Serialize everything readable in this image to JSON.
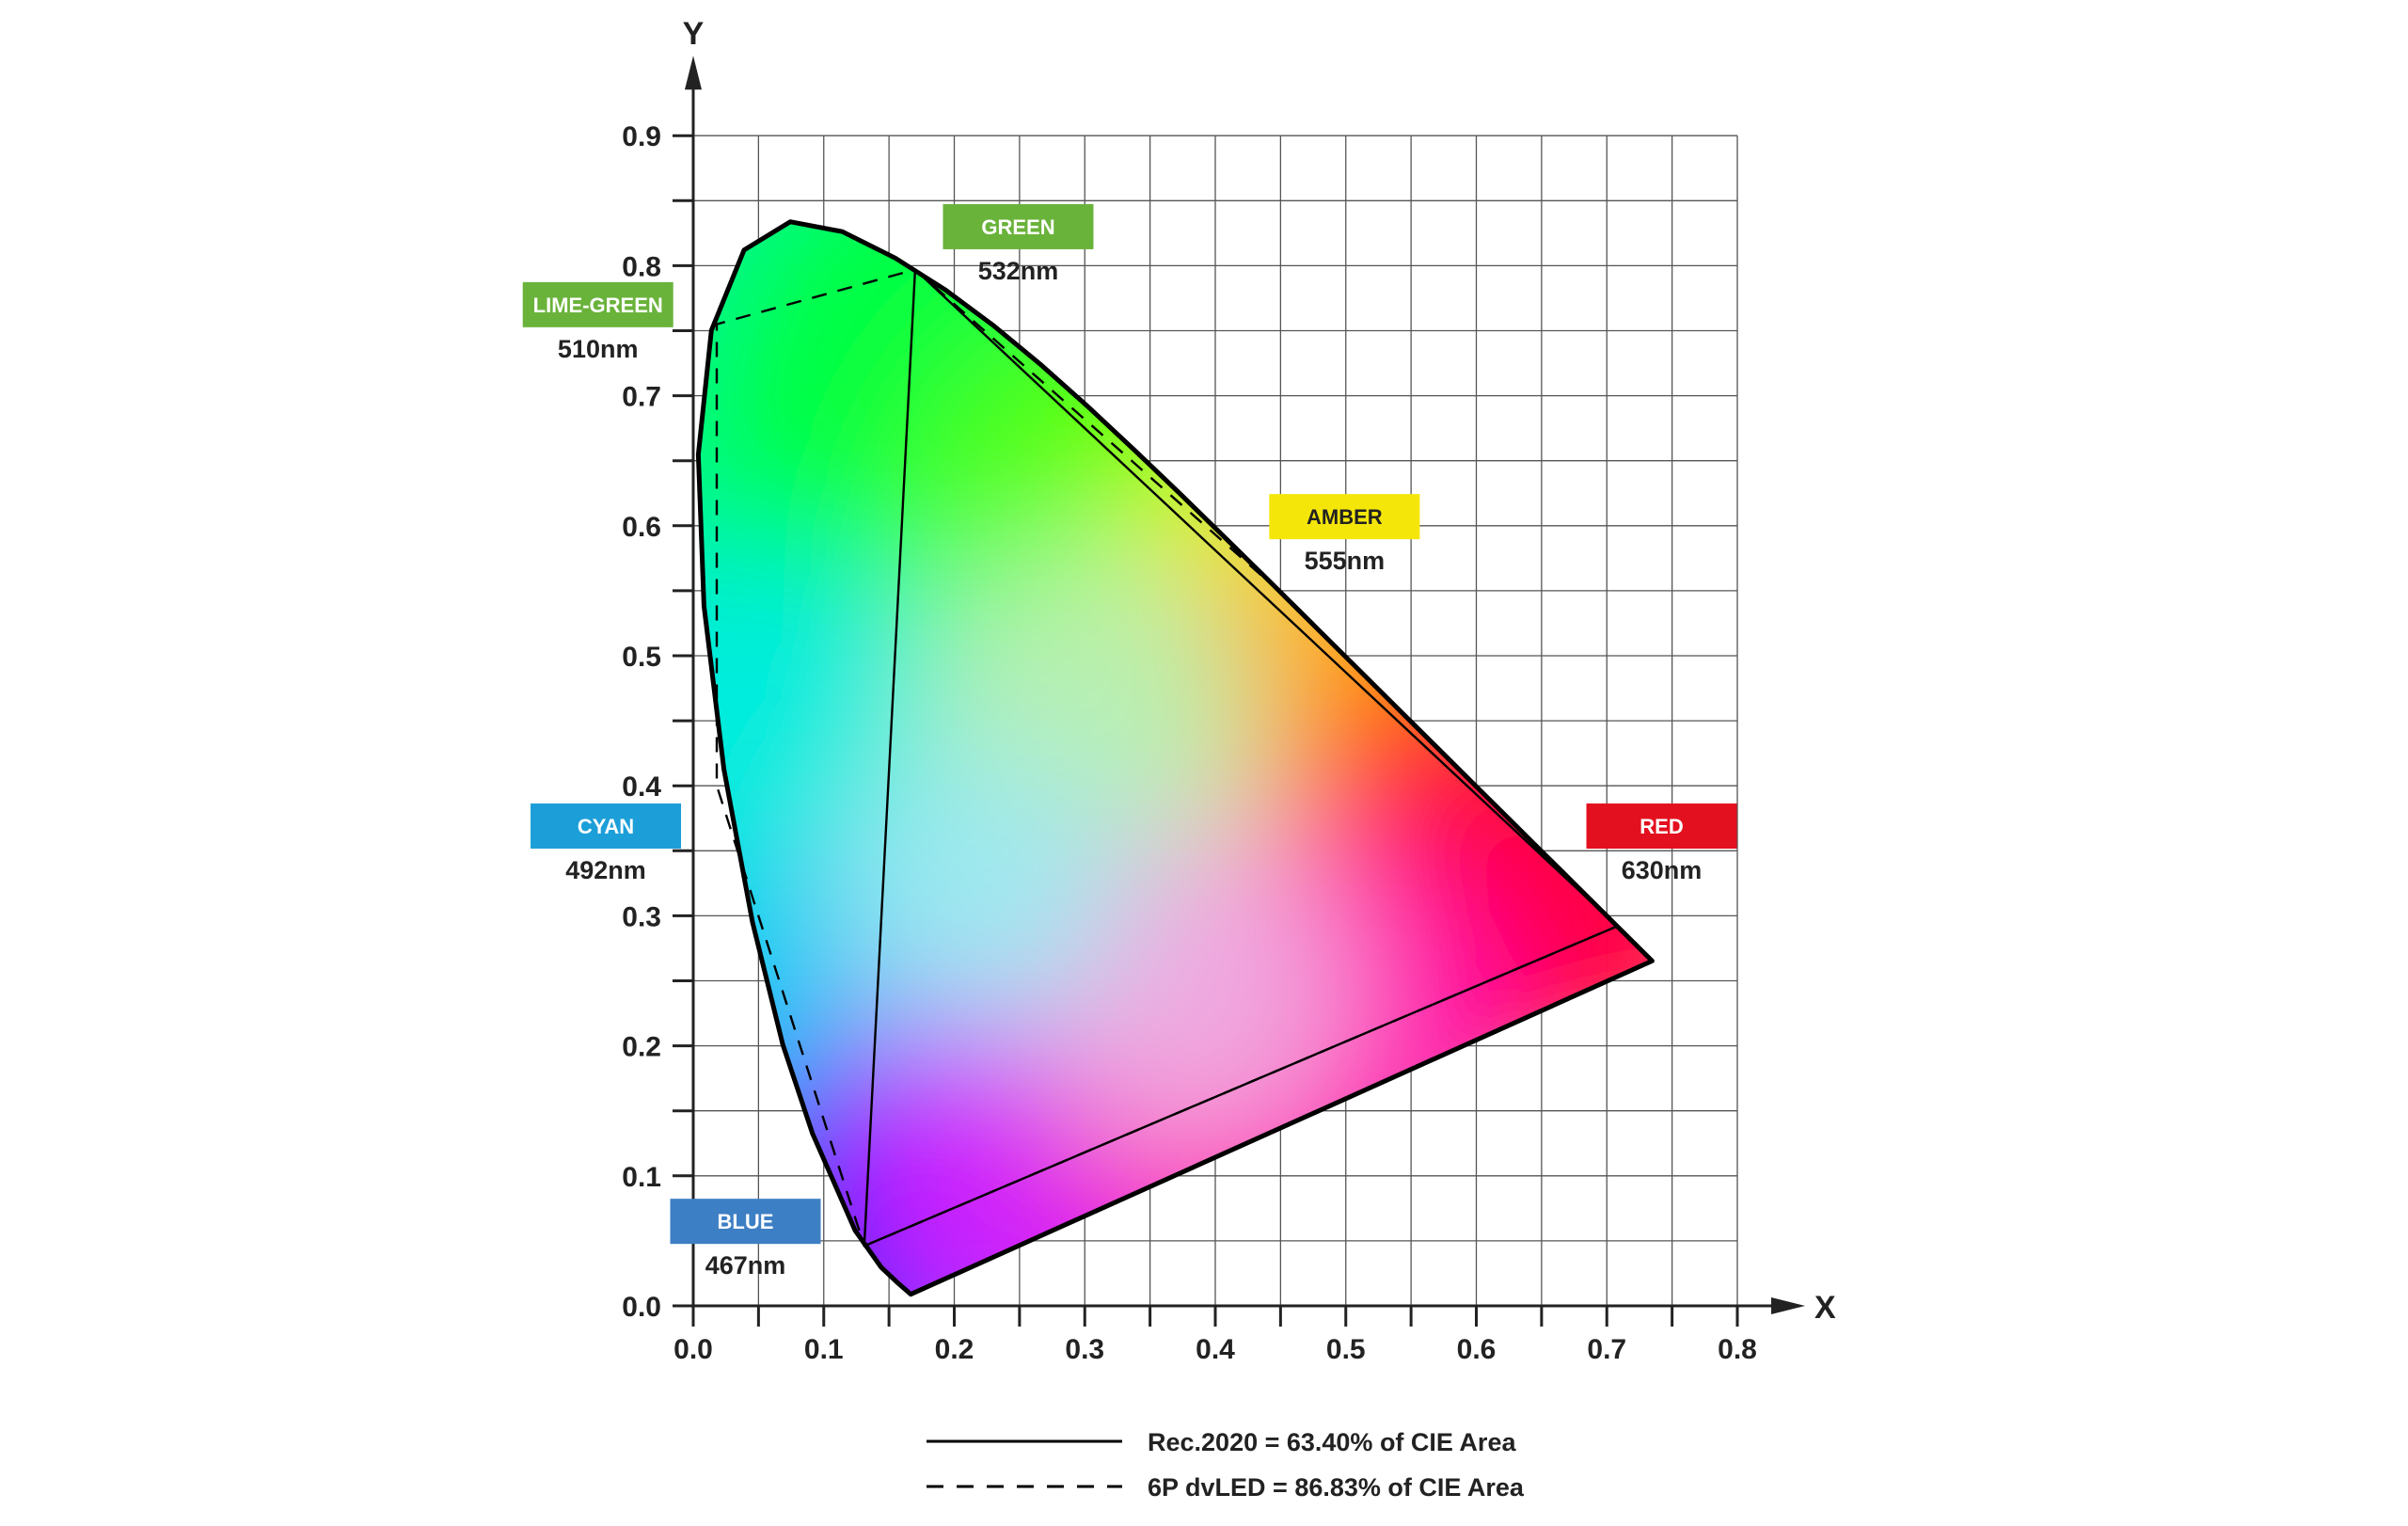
{
  "chart_data": {
    "type": "scatter",
    "title": "",
    "xlabel": "X",
    "ylabel": "Y",
    "xlim": [
      0,
      0.8
    ],
    "ylim": [
      0,
      0.9
    ],
    "x_ticks": [
      "0.0",
      "0.1",
      "0.2",
      "0.3",
      "0.4",
      "0.5",
      "0.6",
      "0.7",
      "0.8"
    ],
    "y_ticks": [
      "0.0",
      "0.1",
      "0.2",
      "0.3",
      "0.4",
      "0.5",
      "0.6",
      "0.7",
      "0.8",
      "0.9"
    ],
    "grid": true,
    "spectral_locus": {
      "x": [
        0.1666,
        0.1644,
        0.1566,
        0.144,
        0.1241,
        0.0913,
        0.0687,
        0.0454,
        0.0235,
        0.0082,
        0.0039,
        0.0139,
        0.0389,
        0.0743,
        0.1142,
        0.1547,
        0.1929,
        0.2296,
        0.2658,
        0.3016,
        0.3373,
        0.3731,
        0.4087,
        0.4441,
        0.4788,
        0.5125,
        0.5448,
        0.5752,
        0.6029,
        0.627,
        0.6482,
        0.6658,
        0.6801,
        0.6915,
        0.7006,
        0.7079,
        0.714,
        0.7347
      ],
      "y": [
        0.0089,
        0.0109,
        0.0177,
        0.0297,
        0.0578,
        0.1327,
        0.2007,
        0.295,
        0.4127,
        0.5384,
        0.6548,
        0.7502,
        0.812,
        0.8338,
        0.8262,
        0.8059,
        0.7816,
        0.7543,
        0.7243,
        0.6923,
        0.6589,
        0.6245,
        0.5896,
        0.5547,
        0.5202,
        0.4866,
        0.4544,
        0.4242,
        0.3965,
        0.3725,
        0.3514,
        0.334,
        0.3197,
        0.3083,
        0.2993,
        0.292,
        0.2859,
        0.2653
      ]
    },
    "series": [
      {
        "name": "Rec.2020 = 63.40% of CIE Area",
        "style": "solid",
        "x": [
          0.708,
          0.17,
          0.131
        ],
        "y": [
          0.292,
          0.797,
          0.046
        ]
      },
      {
        "name": "6P dvLED = 86.83% of CIE Area",
        "style": "dashed",
        "x": [
          0.708,
          0.443,
          0.17,
          0.018,
          0.018,
          0.131
        ],
        "y": [
          0.292,
          0.555,
          0.797,
          0.755,
          0.4,
          0.046
        ]
      }
    ],
    "annotations": [
      {
        "tag": "GREEN",
        "wavelength": "532nm",
        "color": "#6ab33b",
        "text_color": "#ffffff",
        "x": 0.249,
        "y": 0.83
      },
      {
        "tag": "LIME-GREEN",
        "wavelength": "510nm",
        "color": "#6ab33b",
        "text_color": "#ffffff",
        "x": -0.073,
        "y": 0.77
      },
      {
        "tag": "AMBER",
        "wavelength": "555nm",
        "color": "#f5e60a",
        "text_color": "#222222",
        "x": 0.499,
        "y": 0.607
      },
      {
        "tag": "CYAN",
        "wavelength": "492nm",
        "color": "#1c9fd8",
        "text_color": "#ffffff",
        "x": -0.067,
        "y": 0.369
      },
      {
        "tag": "RED",
        "wavelength": "630nm",
        "color": "#e3101f",
        "text_color": "#ffffff",
        "x": 0.742,
        "y": 0.369
      },
      {
        "tag": "BLUE",
        "wavelength": "467nm",
        "color": "#3d7fc4",
        "text_color": "#ffffff",
        "x": 0.04,
        "y": 0.065
      }
    ]
  }
}
